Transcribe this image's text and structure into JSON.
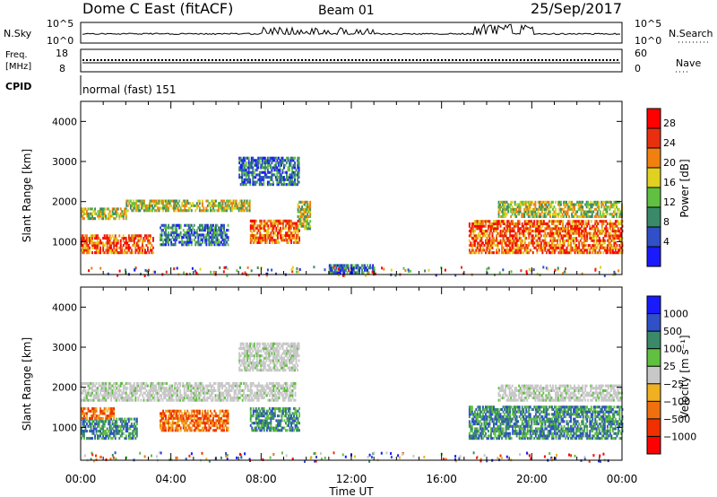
{
  "header": {
    "station": "Dome C East (fitACF)",
    "beam": "Beam 01",
    "date": "25/Sep/2017"
  },
  "noise_panel": {
    "left_label": "N.Sky",
    "right_label": "N.Search",
    "left_ticks": [
      "10^5",
      "10^0"
    ],
    "right_ticks": [
      "10^5",
      "10^0"
    ]
  },
  "freq_panel": {
    "left_label_line1": "Freq.",
    "left_label_line2": "[MHz]",
    "left_ticks": [
      "18",
      "8"
    ],
    "right_label": "Nave",
    "right_ticks": [
      "60",
      "0"
    ]
  },
  "cpid_panel": {
    "label": "CPID",
    "text": "normal (fast) 151"
  },
  "time_axis": {
    "label": "Time UT",
    "ticks": [
      "00:00",
      "04:00",
      "08:00",
      "12:00",
      "16:00",
      "20:00",
      "00:00"
    ]
  },
  "power_colorbar": {
    "label": "Power [dB]",
    "ticks": [
      "28",
      "24",
      "20",
      "16",
      "12",
      "8",
      "4"
    ],
    "colors": [
      "#1a1aff",
      "#3050c8",
      "#3a8a6a",
      "#60c040",
      "#e0d020",
      "#f08010",
      "#e83010",
      "#ff0000"
    ]
  },
  "velocity_colorbar": {
    "label": "Velocity [m s⁻¹]",
    "ticks": [
      "1000",
      "500",
      "100",
      "25",
      "−25",
      "−100",
      "−500",
      "−1000"
    ],
    "colors": [
      "#ff0000",
      "#f03000",
      "#f07010",
      "#f0b020",
      "#c8c8c8",
      "#60c040",
      "#3a8a6a",
      "#3050c8",
      "#1a1aff"
    ]
  },
  "chart_data": [
    {
      "type": "heatmap",
      "title": "Power",
      "xlabel": "Time UT",
      "ylabel": "Slant Range [km]",
      "xlim": [
        0,
        24
      ],
      "ylim": [
        180,
        4500
      ],
      "y_ticks": [
        1000,
        2000,
        3000,
        4000
      ],
      "colorbar": {
        "label": "Power [dB]",
        "range": [
          0,
          32
        ]
      },
      "regions": [
        {
          "t_start": 0.0,
          "t_end": 3.2,
          "r_min": 700,
          "r_max": 1150,
          "level": "high"
        },
        {
          "t_start": 0.0,
          "t_end": 2.0,
          "r_min": 1550,
          "r_max": 1850,
          "level": "medium"
        },
        {
          "t_start": 2.0,
          "t_end": 7.5,
          "r_min": 1750,
          "r_max": 2050,
          "level": "medium"
        },
        {
          "t_start": 3.5,
          "t_end": 6.5,
          "r_min": 900,
          "r_max": 1400,
          "level": "low"
        },
        {
          "t_start": 7.0,
          "t_end": 9.7,
          "r_min": 2400,
          "r_max": 3100,
          "level": "low"
        },
        {
          "t_start": 7.5,
          "t_end": 9.7,
          "r_min": 950,
          "r_max": 1500,
          "level": "high"
        },
        {
          "t_start": 9.6,
          "t_end": 10.2,
          "r_min": 1300,
          "r_max": 2000,
          "level": "medium"
        },
        {
          "t_start": 11.0,
          "t_end": 13.0,
          "r_min": 200,
          "r_max": 400,
          "level": "low"
        },
        {
          "t_start": 17.2,
          "t_end": 24.0,
          "r_min": 700,
          "r_max": 1500,
          "level": "high"
        },
        {
          "t_start": 18.5,
          "t_end": 24.0,
          "r_min": 1600,
          "r_max": 2000,
          "level": "medium"
        }
      ]
    },
    {
      "type": "heatmap",
      "title": "Velocity",
      "xlabel": "Time UT",
      "ylabel": "Slant Range [km]",
      "xlim": [
        0,
        24
      ],
      "ylim": [
        180,
        4500
      ],
      "y_ticks": [
        1000,
        2000,
        3000,
        4000
      ],
      "colorbar": {
        "label": "Velocity [m s⁻¹]",
        "levels": [
          -1000,
          -500,
          -100,
          -25,
          25,
          100,
          500,
          1000
        ]
      },
      "regions": [
        {
          "t_start": 0.0,
          "t_end": 2.5,
          "r_min": 700,
          "r_max": 1200,
          "level": "positive"
        },
        {
          "t_start": 0.0,
          "t_end": 1.5,
          "r_min": 1200,
          "r_max": 1500,
          "level": "negative"
        },
        {
          "t_start": 0.0,
          "t_end": 9.5,
          "r_min": 1650,
          "r_max": 2100,
          "level": "near-zero"
        },
        {
          "t_start": 3.5,
          "t_end": 6.5,
          "r_min": 900,
          "r_max": 1400,
          "level": "negative"
        },
        {
          "t_start": 7.0,
          "t_end": 9.7,
          "r_min": 2400,
          "r_max": 3100,
          "level": "near-zero"
        },
        {
          "t_start": 7.5,
          "t_end": 9.7,
          "r_min": 900,
          "r_max": 1500,
          "level": "positive"
        },
        {
          "t_start": 17.2,
          "t_end": 24.0,
          "r_min": 700,
          "r_max": 1500,
          "level": "positive"
        },
        {
          "t_start": 18.5,
          "t_end": 24.0,
          "r_min": 1650,
          "r_max": 2050,
          "level": "near-zero"
        }
      ]
    }
  ]
}
